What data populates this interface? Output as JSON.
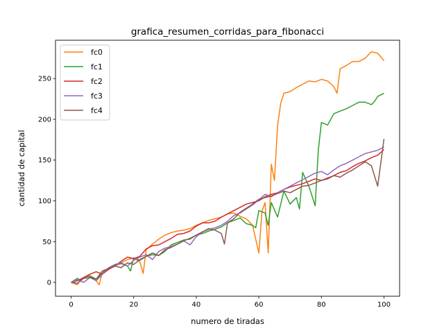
{
  "chart_data": {
    "type": "line",
    "title": "grafica_resumen_corridas_para_fibonacci",
    "xlabel": "numero de tiradas",
    "ylabel": "cantidad de capital",
    "xlim": [
      -5,
      105
    ],
    "ylim": [
      -17,
      297
    ],
    "xticks": [
      0,
      20,
      40,
      60,
      80,
      100
    ],
    "yticks": [
      0,
      50,
      100,
      150,
      200,
      250
    ],
    "grid": false,
    "legend_position": "top-left",
    "series": [
      {
        "name": "fc0",
        "color": "#ff7f0e",
        "x": [
          0,
          2,
          3,
          5,
          7,
          8,
          9,
          10,
          12,
          14,
          16,
          18,
          20,
          22,
          23,
          24,
          26,
          28,
          30,
          32,
          34,
          36,
          38,
          40,
          42,
          44,
          46,
          48,
          49,
          50,
          52,
          54,
          56,
          58,
          60,
          61,
          62,
          63,
          64,
          65,
          66,
          67,
          68,
          70,
          72,
          74,
          76,
          78,
          80,
          82,
          84,
          85,
          86,
          88,
          90,
          92,
          94,
          96,
          98,
          100
        ],
        "y": [
          0,
          -3,
          3,
          8,
          6,
          2,
          -3,
          13,
          17,
          22,
          24,
          28,
          30,
          25,
          11,
          40,
          47,
          53,
          58,
          61,
          63,
          64,
          66,
          70,
          73,
          76,
          78,
          80,
          82,
          84,
          85,
          81,
          78,
          70,
          36,
          87,
          98,
          36,
          145,
          125,
          192,
          220,
          232,
          234,
          239,
          243,
          247,
          246,
          249,
          247,
          240,
          232,
          262,
          266,
          271,
          271,
          275,
          283,
          281,
          272
        ]
      },
      {
        "name": "fc1",
        "color": "#2ca02c",
        "x": [
          0,
          2,
          3,
          4,
          6,
          8,
          10,
          12,
          14,
          16,
          18,
          19,
          20,
          22,
          24,
          26,
          28,
          30,
          32,
          34,
          36,
          38,
          40,
          42,
          44,
          46,
          48,
          50,
          52,
          54,
          56,
          58,
          59,
          60,
          62,
          63,
          64,
          66,
          68,
          70,
          72,
          73,
          74,
          76,
          78,
          79,
          80,
          82,
          84,
          86,
          88,
          90,
          92,
          94,
          96,
          97,
          98,
          100
        ],
        "y": [
          0,
          5,
          2,
          6,
          8,
          4,
          11,
          18,
          21,
          23,
          20,
          14,
          30,
          27,
          32,
          34,
          33,
          38,
          46,
          49,
          52,
          53,
          58,
          60,
          63,
          65,
          68,
          73,
          76,
          79,
          72,
          70,
          67,
          88,
          85,
          70,
          98,
          80,
          112,
          96,
          104,
          90,
          135,
          118,
          94,
          162,
          196,
          193,
          207,
          210,
          213,
          217,
          221,
          221,
          218,
          222,
          228,
          232
        ]
      },
      {
        "name": "fc2",
        "color": "#d62728",
        "x": [
          0,
          2,
          4,
          6,
          8,
          10,
          12,
          14,
          16,
          18,
          20,
          22,
          24,
          26,
          28,
          30,
          32,
          34,
          36,
          38,
          40,
          42,
          44,
          46,
          48,
          50,
          52,
          54,
          56,
          58,
          60,
          62,
          64,
          66,
          68,
          70,
          72,
          74,
          76,
          78,
          80,
          82,
          84,
          86,
          88,
          90,
          92,
          94,
          96,
          98,
          100
        ],
        "y": [
          0,
          2,
          6,
          10,
          13,
          10,
          16,
          20,
          26,
          31,
          29,
          32,
          41,
          45,
          46,
          50,
          54,
          59,
          60,
          63,
          69,
          73,
          73,
          75,
          80,
          84,
          88,
          92,
          96,
          98,
          100,
          105,
          108,
          110,
          114,
          117,
          119,
          121,
          124,
          127,
          125,
          128,
          131,
          135,
          137,
          142,
          146,
          149,
          153,
          156,
          163
        ]
      },
      {
        "name": "fc3",
        "color": "#9467bd",
        "x": [
          0,
          2,
          4,
          6,
          8,
          10,
          12,
          14,
          16,
          18,
          20,
          22,
          24,
          26,
          28,
          30,
          32,
          34,
          36,
          38,
          40,
          42,
          44,
          46,
          48,
          50,
          52,
          54,
          56,
          58,
          60,
          62,
          64,
          66,
          68,
          70,
          72,
          74,
          76,
          78,
          80,
          82,
          84,
          86,
          88,
          90,
          92,
          94,
          96,
          98,
          100
        ],
        "y": [
          0,
          3,
          0,
          6,
          2,
          10,
          18,
          22,
          24,
          20,
          27,
          31,
          34,
          28,
          38,
          42,
          44,
          47,
          51,
          46,
          56,
          62,
          65,
          67,
          70,
          75,
          82,
          85,
          90,
          95,
          101,
          108,
          105,
          110,
          114,
          118,
          122,
          126,
          130,
          134,
          136,
          132,
          138,
          143,
          146,
          150,
          154,
          158,
          160,
          162,
          166
        ]
      },
      {
        "name": "fc4",
        "color": "#8c564b",
        "x": [
          0,
          2,
          4,
          6,
          8,
          10,
          12,
          14,
          16,
          18,
          20,
          22,
          24,
          26,
          28,
          30,
          32,
          34,
          36,
          38,
          40,
          42,
          44,
          46,
          48,
          49,
          50,
          52,
          54,
          56,
          58,
          60,
          62,
          64,
          66,
          68,
          70,
          72,
          74,
          76,
          78,
          80,
          82,
          84,
          86,
          88,
          90,
          92,
          94,
          96,
          98,
          100
        ],
        "y": [
          0,
          -1,
          5,
          6,
          4,
          14,
          17,
          20,
          18,
          24,
          22,
          28,
          32,
          36,
          33,
          40,
          43,
          47,
          51,
          54,
          58,
          62,
          66,
          64,
          60,
          47,
          73,
          78,
          86,
          91,
          96,
          102,
          104,
          106,
          109,
          112,
          110,
          114,
          118,
          119,
          122,
          125,
          127,
          131,
          129,
          134,
          138,
          143,
          148,
          143,
          118,
          176
        ]
      }
    ]
  }
}
